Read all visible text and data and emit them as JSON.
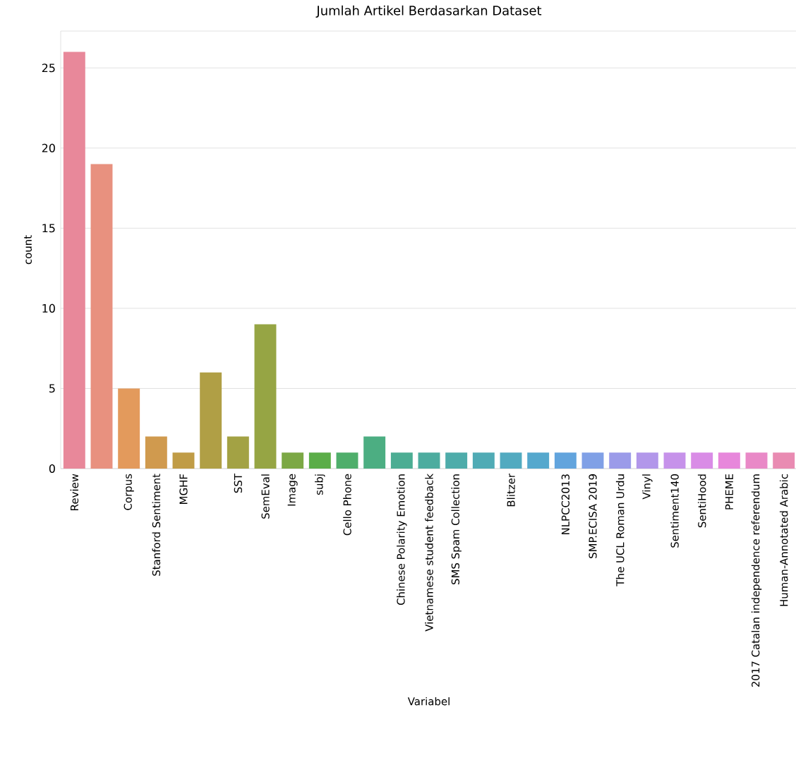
{
  "chart_data": {
    "type": "bar",
    "title": "Jumlah Artikel Berdasarkan Dataset",
    "xlabel": "Variabel",
    "ylabel": "count",
    "categories": [
      "Review",
      null,
      "Corpus",
      "Stanford Sentiment",
      "MGHF",
      null,
      "SST",
      "SemEval",
      "Image",
      "subj",
      "Cello Phone",
      null,
      "Chinese Polarity Emotion",
      "Vietnamese student feedback",
      "SMS Spam Collection",
      null,
      "Blitzer",
      null,
      "NLPCC2013",
      "SMP.ECISA 2019",
      "The UCL Roman Urdu",
      "Vinyl",
      "Sentiment140",
      "SentiHood",
      "PHEME",
      "2017 Catalan independence referendum",
      "Human-Annotated Arabic"
    ],
    "values": [
      26,
      19,
      5,
      2,
      1,
      6,
      2,
      9,
      1,
      1,
      1,
      2,
      1,
      1,
      1,
      1,
      1,
      1,
      1,
      1,
      1,
      1,
      1,
      1,
      1,
      1,
      1
    ],
    "colors": [
      "#e8889a",
      "#e8917f",
      "#e39a5c",
      "#d09a4e",
      "#c09c46",
      "#b09f45",
      "#a3a244",
      "#96a544",
      "#7ca845",
      "#5bad48",
      "#4fae6b",
      "#4cae82",
      "#4cad93",
      "#4dac9f",
      "#4eacaa",
      "#50abb5",
      "#52aac0",
      "#55a8cd",
      "#62a4dd",
      "#80a0e6",
      "#9b9be9",
      "#b297ea",
      "#c692ea",
      "#d98ce6",
      "#e787db",
      "#e989c7",
      "#e98bb2"
    ],
    "ylim": [
      0,
      27.3
    ],
    "yticks": [
      0,
      5,
      10,
      15,
      20,
      25
    ],
    "grid": "y"
  }
}
